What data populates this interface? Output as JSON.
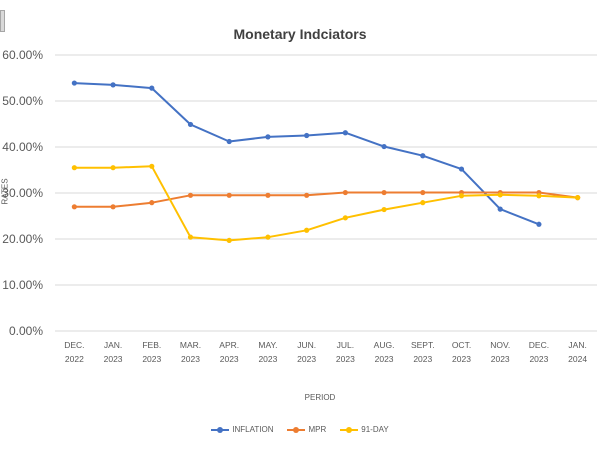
{
  "chart_data": {
    "type": "line",
    "title": "Monetary Indciators",
    "xlabel": "PERIOD",
    "ylabel": "RATES",
    "ylim": [
      0,
      60
    ],
    "yticks": [
      "0.00%",
      "10.00%",
      "20.00%",
      "30.00%",
      "40.00%",
      "50.00%",
      "60.00%"
    ],
    "grid": true,
    "legend_position": "bottom",
    "categories": [
      {
        "month": "DEC.",
        "year": "2022"
      },
      {
        "month": "JAN.",
        "year": "2023"
      },
      {
        "month": "FEB.",
        "year": "2023"
      },
      {
        "month": "MAR.",
        "year": "2023"
      },
      {
        "month": "APR.",
        "year": "2023"
      },
      {
        "month": "MAY.",
        "year": "2023"
      },
      {
        "month": "JUN.",
        "year": "2023"
      },
      {
        "month": "JUL.",
        "year": "2023"
      },
      {
        "month": "AUG.",
        "year": "2023"
      },
      {
        "month": "SEPT.",
        "year": "2023"
      },
      {
        "month": "OCT.",
        "year": "2023"
      },
      {
        "month": "NOV.",
        "year": "2023"
      },
      {
        "month": "DEC.",
        "year": "2023"
      },
      {
        "month": "JAN.",
        "year": "2024"
      }
    ],
    "series": [
      {
        "name": "INFLATION",
        "color": "#4472c4",
        "values": [
          53.9,
          53.5,
          52.8,
          44.9,
          41.2,
          42.2,
          42.5,
          43.1,
          40.1,
          38.1,
          35.2,
          26.5,
          23.2,
          null
        ]
      },
      {
        "name": "MPR",
        "color": "#ed7d31",
        "values": [
          27.0,
          27.0,
          27.9,
          29.5,
          29.5,
          29.5,
          29.5,
          30.1,
          30.1,
          30.1,
          30.1,
          30.1,
          30.1,
          29.0
        ]
      },
      {
        "name": "91-DAY",
        "color": "#ffc000",
        "values": [
          35.5,
          35.5,
          35.8,
          20.4,
          19.7,
          20.4,
          21.9,
          24.6,
          26.4,
          27.9,
          29.4,
          29.6,
          29.4,
          29.0
        ]
      }
    ]
  }
}
